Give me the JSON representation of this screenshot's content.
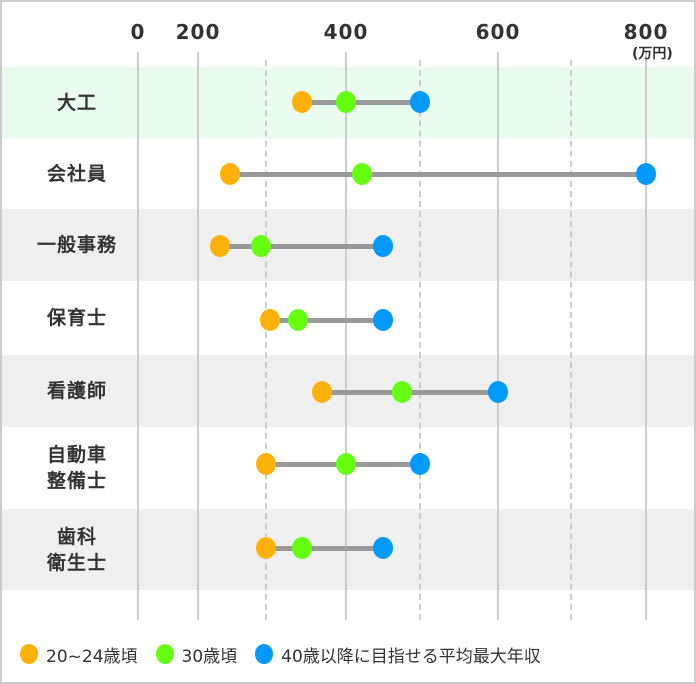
{
  "chart_data": {
    "type": "range-dot",
    "title": "",
    "unit": "(万円)",
    "xlabel": "",
    "ylabel": "",
    "xlim": [
      0,
      800
    ],
    "axis_note": "non-linear axis: 0–200 compressed; gridlines at 0,200,400,600,800 solid and 300,500,700 dashed",
    "x_ticks": [
      {
        "value": 0,
        "label": "0"
      },
      {
        "value": 200,
        "label": "200"
      },
      {
        "value": 400,
        "label": "400"
      },
      {
        "value": 600,
        "label": "600"
      },
      {
        "value": 800,
        "label": "800"
      }
    ],
    "categories": [
      "大工",
      "会社員",
      "一般事務",
      "保育士",
      "看護師",
      "自動車\n整備士",
      "歯科\n衛生士"
    ],
    "series": [
      {
        "name": "20~24歳頃",
        "color": "#FFB10A",
        "values": [
          345,
          247,
          232,
          305,
          370,
          300,
          300
        ]
      },
      {
        "name": "30歳頃",
        "color": "#66FF11",
        "values": [
          400,
          421,
          292,
          340,
          476,
          400,
          345
        ]
      },
      {
        "name": "40歳以降に目指せる平均最大年収",
        "color": "#0099FF",
        "values": [
          500,
          800,
          450,
          450,
          600,
          500,
          450
        ]
      }
    ],
    "legend_position": "bottom",
    "grid": true
  },
  "axis": {
    "labels": [
      {
        "text": "0",
        "x": 138
      },
      {
        "text": "200",
        "x": 198
      },
      {
        "text": "400",
        "x": 346
      },
      {
        "text": "600",
        "x": 498
      },
      {
        "text": "800",
        "x": 646
      }
    ],
    "unit": "(万円)"
  },
  "rows": [
    {
      "label": "大工",
      "band": "#E9FCEF"
    },
    {
      "label": "会社員",
      "band": "#FFFFFF"
    },
    {
      "label": "一般事務",
      "band": "#F0F0F0"
    },
    {
      "label": "保育士",
      "band": "#FFFFFF"
    },
    {
      "label": "看護師",
      "band": "#F0F0F0"
    },
    {
      "label": "自動車\n整備士",
      "band": "#FFFFFF"
    },
    {
      "label": "歯科\n衛生士",
      "band": "#F0F0F0"
    }
  ],
  "legend": [
    {
      "label": "20~24歳頃",
      "color": "#FFB10A"
    },
    {
      "label": "30歳頃",
      "color": "#66FF11"
    },
    {
      "label": "40歳以降に目指せる平均最大年収",
      "color": "#0099FF"
    }
  ],
  "colors": {
    "bar": "#999999",
    "grid": "#CCCCCC",
    "text": "#333333"
  }
}
